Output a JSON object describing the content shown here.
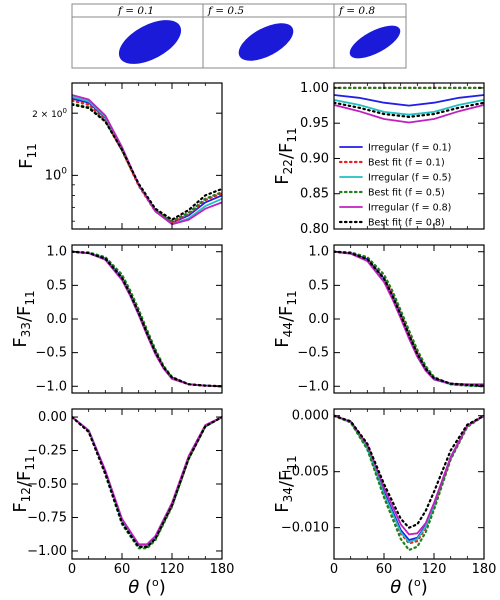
{
  "header": {
    "panels": [
      {
        "label": "f = 0.1"
      },
      {
        "label": "f = 0.5"
      },
      {
        "label": "f = 0.8"
      }
    ]
  },
  "colors": {
    "f01": "#1f1fe8",
    "f05": "#20c0c0",
    "f08": "#c020c0",
    "best01": "#e82020",
    "best05": "#208020",
    "best08": "#000000",
    "particle": "#1a1ad8"
  },
  "chart_data": [
    {
      "id": "F11",
      "type": "line",
      "ylabel": "F11",
      "yscale": "log",
      "xlim": [
        0,
        180
      ],
      "ylim": [
        0.55,
        2.8
      ],
      "xticks": [
        0,
        60,
        120,
        180
      ],
      "xticklabels": [
        "",
        "",
        "",
        ""
      ],
      "yticks": [
        1.0,
        2.0
      ],
      "yticklabels": [
        "10^0",
        "2×10^0"
      ],
      "x": [
        0,
        20,
        40,
        60,
        80,
        100,
        120,
        140,
        160,
        180
      ],
      "series": [
        {
          "name": "Irregular (f = 0.1)",
          "style": "solid",
          "color": "#1f1fe8",
          "values": [
            2.35,
            2.25,
            1.9,
            1.35,
            0.9,
            0.68,
            0.59,
            0.64,
            0.74,
            0.8
          ]
        },
        {
          "name": "Best fit (f = 0.1)",
          "style": "dotted",
          "color": "#e82020",
          "values": [
            2.3,
            2.2,
            1.85,
            1.32,
            0.89,
            0.67,
            0.59,
            0.65,
            0.76,
            0.82
          ]
        },
        {
          "name": "Irregular (f = 0.5)",
          "style": "solid",
          "color": "#20c0c0",
          "values": [
            2.4,
            2.28,
            1.92,
            1.36,
            0.9,
            0.67,
            0.58,
            0.62,
            0.71,
            0.77
          ]
        },
        {
          "name": "Best fit (f = 0.5)",
          "style": "dotted",
          "color": "#208020",
          "values": [
            2.22,
            2.14,
            1.83,
            1.33,
            0.9,
            0.68,
            0.6,
            0.66,
            0.77,
            0.83
          ]
        },
        {
          "name": "Irregular (f = 0.8)",
          "style": "solid",
          "color": "#c020c0",
          "values": [
            2.45,
            2.33,
            1.95,
            1.37,
            0.9,
            0.67,
            0.58,
            0.61,
            0.69,
            0.74
          ]
        },
        {
          "name": "Best fit (f = 0.8)",
          "style": "dotted",
          "color": "#000000",
          "values": [
            2.2,
            2.12,
            1.82,
            1.33,
            0.91,
            0.69,
            0.61,
            0.68,
            0.8,
            0.86
          ]
        }
      ]
    },
    {
      "id": "F22",
      "type": "line",
      "ylabel": "F22/F11",
      "xlim": [
        0,
        180
      ],
      "ylim": [
        0.8,
        1.007
      ],
      "xticks": [
        0,
        60,
        120,
        180
      ],
      "xticklabels": [
        "",
        "",
        "",
        ""
      ],
      "yticks": [
        0.8,
        0.85,
        0.9,
        0.95,
        1.0
      ],
      "yticklabels": [
        "0.80",
        "0.85",
        "0.90",
        "0.95",
        "1.00"
      ],
      "x": [
        0,
        30,
        60,
        90,
        120,
        150,
        180
      ],
      "series": [
        {
          "name": "Irregular (f = 0.1)",
          "style": "solid",
          "color": "#1f1fe8",
          "values": [
            0.99,
            0.986,
            0.979,
            0.975,
            0.979,
            0.986,
            0.99
          ]
        },
        {
          "name": "Best fit (f = 0.1)",
          "style": "dotted",
          "color": "#e82020",
          "values": [
            1.0,
            1.0,
            1.0,
            1.0,
            1.0,
            1.0,
            1.0
          ]
        },
        {
          "name": "Irregular (f = 0.5)",
          "style": "solid",
          "color": "#20c0c0",
          "values": [
            0.983,
            0.976,
            0.966,
            0.962,
            0.966,
            0.976,
            0.983
          ]
        },
        {
          "name": "Best fit (f = 0.5)",
          "style": "dotted",
          "color": "#208020",
          "values": [
            1.0,
            1.0,
            1.0,
            1.0,
            1.0,
            1.0,
            1.0
          ]
        },
        {
          "name": "Irregular (f = 0.8)",
          "style": "solid",
          "color": "#c020c0",
          "values": [
            0.976,
            0.967,
            0.956,
            0.951,
            0.956,
            0.967,
            0.976
          ]
        },
        {
          "name": "Best fit (f = 0.8)",
          "style": "dotted",
          "color": "#000000",
          "values": [
            0.979,
            0.972,
            0.963,
            0.959,
            0.963,
            0.972,
            0.979
          ]
        }
      ],
      "legend": {
        "placement": "center-right"
      }
    },
    {
      "id": "F33",
      "type": "line",
      "ylabel": "F33/F11",
      "xlim": [
        0,
        180
      ],
      "ylim": [
        -1.1,
        1.1
      ],
      "xticks": [
        0,
        60,
        120,
        180
      ],
      "xticklabels": [
        "",
        "",
        "",
        ""
      ],
      "yticks": [
        -1.0,
        -0.5,
        0.0,
        0.5,
        1.0
      ],
      "yticklabels": [
        "−1.0",
        "−0.5",
        "0.0",
        "0.5",
        "1.0"
      ],
      "x": [
        0,
        20,
        40,
        60,
        70,
        80,
        90,
        100,
        110,
        120,
        140,
        160,
        180
      ],
      "series": [
        {
          "name": "Irregular (f = 0.1)",
          "style": "solid",
          "color": "#1f1fe8",
          "values": [
            1.0,
            0.98,
            0.9,
            0.62,
            0.38,
            0.1,
            -0.2,
            -0.48,
            -0.72,
            -0.87,
            -0.97,
            -0.99,
            -1.0
          ]
        },
        {
          "name": "Best fit (f = 0.1)",
          "style": "dotted",
          "color": "#e82020",
          "values": [
            1.0,
            0.98,
            0.9,
            0.62,
            0.38,
            0.1,
            -0.2,
            -0.48,
            -0.72,
            -0.87,
            -0.97,
            -0.99,
            -1.0
          ]
        },
        {
          "name": "Irregular (f = 0.5)",
          "style": "solid",
          "color": "#20c0c0",
          "values": [
            1.0,
            0.98,
            0.89,
            0.6,
            0.36,
            0.08,
            -0.22,
            -0.5,
            -0.73,
            -0.88,
            -0.97,
            -0.99,
            -1.0
          ]
        },
        {
          "name": "Best fit (f = 0.5)",
          "style": "dotted",
          "color": "#208020",
          "values": [
            1.0,
            0.99,
            0.92,
            0.66,
            0.42,
            0.14,
            -0.16,
            -0.45,
            -0.7,
            -0.86,
            -0.97,
            -0.99,
            -1.0
          ]
        },
        {
          "name": "Irregular (f = 0.8)",
          "style": "solid",
          "color": "#c020c0",
          "values": [
            1.0,
            0.98,
            0.88,
            0.58,
            0.34,
            0.06,
            -0.24,
            -0.52,
            -0.74,
            -0.89,
            -0.97,
            -0.99,
            -1.0
          ]
        },
        {
          "name": "Best fit (f = 0.8)",
          "style": "dotted",
          "color": "#000000",
          "values": [
            1.0,
            0.98,
            0.9,
            0.61,
            0.37,
            0.09,
            -0.21,
            -0.49,
            -0.72,
            -0.87,
            -0.97,
            -0.99,
            -1.0
          ]
        }
      ]
    },
    {
      "id": "F44",
      "type": "line",
      "ylabel": "F44/F11",
      "xlim": [
        0,
        180
      ],
      "ylim": [
        -1.1,
        1.1
      ],
      "xticks": [
        0,
        60,
        120,
        180
      ],
      "xticklabels": [
        "",
        "",
        "",
        ""
      ],
      "yticks": [
        -1.0,
        -0.5,
        0.0,
        0.5,
        1.0
      ],
      "yticklabels": [
        "−1.0",
        "−0.5",
        "0.0",
        "0.5",
        "1.0"
      ],
      "x": [
        0,
        20,
        40,
        60,
        70,
        80,
        90,
        100,
        110,
        120,
        140,
        160,
        180
      ],
      "series": [
        {
          "name": "Irregular (f = 0.1)",
          "style": "solid",
          "color": "#1f1fe8",
          "values": [
            1.0,
            0.98,
            0.89,
            0.6,
            0.35,
            0.06,
            -0.24,
            -0.52,
            -0.74,
            -0.88,
            -0.96,
            -0.98,
            -0.99
          ]
        },
        {
          "name": "Best fit (f = 0.1)",
          "style": "dotted",
          "color": "#e82020",
          "values": [
            1.0,
            0.98,
            0.9,
            0.61,
            0.37,
            0.08,
            -0.22,
            -0.5,
            -0.73,
            -0.88,
            -0.97,
            -0.99,
            -1.0
          ]
        },
        {
          "name": "Irregular (f = 0.5)",
          "style": "solid",
          "color": "#20c0c0",
          "values": [
            1.0,
            0.97,
            0.87,
            0.57,
            0.32,
            0.03,
            -0.27,
            -0.55,
            -0.76,
            -0.9,
            -0.97,
            -0.99,
            -1.0
          ]
        },
        {
          "name": "Best fit (f = 0.5)",
          "style": "dotted",
          "color": "#208020",
          "values": [
            1.0,
            0.99,
            0.92,
            0.66,
            0.42,
            0.13,
            -0.17,
            -0.46,
            -0.7,
            -0.86,
            -0.97,
            -0.99,
            -1.0
          ]
        },
        {
          "name": "Irregular (f = 0.8)",
          "style": "solid",
          "color": "#c020c0",
          "values": [
            1.0,
            0.97,
            0.86,
            0.55,
            0.3,
            0.01,
            -0.29,
            -0.56,
            -0.77,
            -0.9,
            -0.96,
            -0.97,
            -0.97
          ]
        },
        {
          "name": "Best fit (f = 0.8)",
          "style": "dotted",
          "color": "#000000",
          "values": [
            1.0,
            0.98,
            0.89,
            0.6,
            0.35,
            0.06,
            -0.24,
            -0.52,
            -0.74,
            -0.88,
            -0.96,
            -0.98,
            -0.99
          ]
        }
      ]
    },
    {
      "id": "F12",
      "type": "line",
      "ylabel": "F12/F11",
      "xlabel": "θ (°)",
      "xlim": [
        0,
        180
      ],
      "ylim": [
        -1.06,
        0.06
      ],
      "xticks": [
        0,
        60,
        120,
        180
      ],
      "xticklabels": [
        "0",
        "60",
        "120",
        "180"
      ],
      "yticks": [
        -1.0,
        -0.75,
        -0.5,
        -0.25,
        0.0
      ],
      "yticklabels": [
        "−1.00",
        "−0.75",
        "−0.50",
        "−0.25",
        "0.00"
      ],
      "x": [
        0,
        20,
        40,
        60,
        80,
        90,
        100,
        120,
        140,
        160,
        180
      ],
      "series": [
        {
          "name": "Irregular (f = 0.1)",
          "style": "solid",
          "color": "#1f1fe8",
          "values": [
            0.0,
            -0.1,
            -0.4,
            -0.77,
            -0.96,
            -0.96,
            -0.9,
            -0.65,
            -0.3,
            -0.07,
            0.0
          ]
        },
        {
          "name": "Best fit (f = 0.1)",
          "style": "dotted",
          "color": "#e82020",
          "values": [
            0.0,
            -0.11,
            -0.42,
            -0.79,
            -0.97,
            -0.97,
            -0.91,
            -0.66,
            -0.31,
            -0.07,
            0.0
          ]
        },
        {
          "name": "Irregular (f = 0.5)",
          "style": "solid",
          "color": "#20c0c0",
          "values": [
            0.0,
            -0.1,
            -0.41,
            -0.78,
            -0.96,
            -0.96,
            -0.9,
            -0.65,
            -0.3,
            -0.07,
            0.0
          ]
        },
        {
          "name": "Best fit (f = 0.5)",
          "style": "dotted",
          "color": "#208020",
          "values": [
            0.0,
            -0.11,
            -0.43,
            -0.8,
            -0.98,
            -0.98,
            -0.92,
            -0.67,
            -0.31,
            -0.07,
            0.0
          ]
        },
        {
          "name": "Irregular (f = 0.8)",
          "style": "solid",
          "color": "#c020c0",
          "values": [
            0.0,
            -0.1,
            -0.4,
            -0.76,
            -0.95,
            -0.95,
            -0.89,
            -0.64,
            -0.29,
            -0.06,
            0.0
          ]
        },
        {
          "name": "Best fit (f = 0.8)",
          "style": "dotted",
          "color": "#000000",
          "values": [
            0.0,
            -0.11,
            -0.42,
            -0.79,
            -0.97,
            -0.97,
            -0.91,
            -0.66,
            -0.31,
            -0.07,
            0.0
          ]
        }
      ]
    },
    {
      "id": "F34",
      "type": "line",
      "ylabel": "F34/F11",
      "xlabel": "θ (°)",
      "xlim": [
        0,
        180
      ],
      "ylim": [
        -0.0128,
        0.0006
      ],
      "xticks": [
        0,
        60,
        120,
        180
      ],
      "xticklabels": [
        "0",
        "60",
        "120",
        "180"
      ],
      "yticks": [
        -0.01,
        -0.005,
        0.0
      ],
      "yticklabels": [
        "−0.010",
        "−0.005",
        "0.000"
      ],
      "x": [
        0,
        20,
        40,
        60,
        80,
        90,
        100,
        110,
        120,
        140,
        160,
        180
      ],
      "series": [
        {
          "name": "Irregular (f = 0.1)",
          "style": "solid",
          "color": "#1f1fe8",
          "values": [
            0.0,
            -0.0006,
            -0.0028,
            -0.0068,
            -0.0102,
            -0.0111,
            -0.0109,
            -0.0098,
            -0.0079,
            -0.0037,
            -0.0009,
            0.0
          ]
        },
        {
          "name": "Best fit (f = 0.1)",
          "style": "dotted",
          "color": "#e82020",
          "values": [
            0.0,
            -0.0006,
            -0.0029,
            -0.007,
            -0.0105,
            -0.0114,
            -0.0112,
            -0.01,
            -0.0081,
            -0.0038,
            -0.0009,
            0.0
          ]
        },
        {
          "name": "Irregular (f = 0.5)",
          "style": "solid",
          "color": "#20c0c0",
          "values": [
            0.0,
            -0.0006,
            -0.0029,
            -0.007,
            -0.0104,
            -0.0113,
            -0.011,
            -0.0099,
            -0.008,
            -0.0037,
            -0.0009,
            0.0
          ]
        },
        {
          "name": "Best fit (f = 0.5)",
          "style": "dotted",
          "color": "#208020",
          "values": [
            0.0,
            -0.0006,
            -0.003,
            -0.0073,
            -0.011,
            -0.012,
            -0.0117,
            -0.0104,
            -0.0084,
            -0.0039,
            -0.001,
            0.0
          ]
        },
        {
          "name": "Irregular (f = 0.8)",
          "style": "solid",
          "color": "#c020c0",
          "values": [
            0.0,
            -0.0005,
            -0.0026,
            -0.0064,
            -0.0097,
            -0.0106,
            -0.0105,
            -0.0096,
            -0.0078,
            -0.0037,
            -0.0009,
            0.0
          ]
        },
        {
          "name": "Best fit (f = 0.8)",
          "style": "dotted",
          "color": "#000000",
          "values": [
            0.0,
            -0.0005,
            -0.0025,
            -0.0061,
            -0.0092,
            -0.01,
            -0.0097,
            -0.0085,
            -0.0068,
            -0.0031,
            -0.0008,
            0.0
          ]
        }
      ]
    }
  ]
}
